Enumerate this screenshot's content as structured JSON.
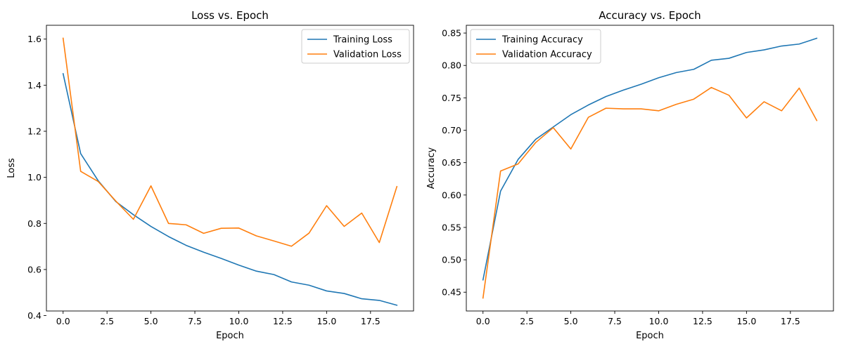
{
  "chart_data": [
    {
      "type": "line",
      "title": "Loss vs. Epoch",
      "xlabel": "Epoch",
      "ylabel": "Loss",
      "xlim": [
        -0.95,
        19.95
      ],
      "ylim": [
        0.42,
        1.66
      ],
      "xticks": [
        0.0,
        2.5,
        5.0,
        7.5,
        10.0,
        12.5,
        15.0,
        17.5
      ],
      "xtick_labels": [
        "0.0",
        "2.5",
        "5.0",
        "7.5",
        "10.0",
        "12.5",
        "15.0",
        "17.5"
      ],
      "yticks": [
        0.4,
        0.6,
        0.8,
        1.0,
        1.2,
        1.4,
        1.6
      ],
      "ytick_labels": [
        "0.4",
        "0.6",
        "0.8",
        "1.0",
        "1.2",
        "1.4",
        "1.6"
      ],
      "legend_position": "top-right",
      "grid": false,
      "x": [
        0,
        1,
        2,
        3,
        4,
        5,
        6,
        7,
        8,
        9,
        10,
        11,
        12,
        13,
        14,
        15,
        16,
        17,
        18,
        19
      ],
      "series": [
        {
          "name": "Training Loss",
          "color": "#1f77b4",
          "values": [
            1.45,
            1.103,
            0.985,
            0.895,
            0.838,
            0.787,
            0.743,
            0.705,
            0.675,
            0.648,
            0.619,
            0.593,
            0.578,
            0.546,
            0.532,
            0.507,
            0.496,
            0.473,
            0.466,
            0.445
          ]
        },
        {
          "name": "Validation Loss",
          "color": "#ff7f0e",
          "values": [
            1.604,
            1.026,
            0.982,
            0.897,
            0.818,
            0.963,
            0.8,
            0.794,
            0.757,
            0.779,
            0.78,
            0.746,
            0.724,
            0.701,
            0.758,
            0.877,
            0.787,
            0.845,
            0.717,
            0.96
          ]
        }
      ]
    },
    {
      "type": "line",
      "title": "Accuracy vs. Epoch",
      "xlabel": "Epoch",
      "ylabel": "Accuracy",
      "xlim": [
        -0.95,
        19.95
      ],
      "ylim": [
        0.421,
        0.862
      ],
      "xticks": [
        0.0,
        2.5,
        5.0,
        7.5,
        10.0,
        12.5,
        15.0,
        17.5
      ],
      "xtick_labels": [
        "0.0",
        "2.5",
        "5.0",
        "7.5",
        "10.0",
        "12.5",
        "15.0",
        "17.5"
      ],
      "yticks": [
        0.45,
        0.5,
        0.55,
        0.6,
        0.65,
        0.7,
        0.75,
        0.8,
        0.85
      ],
      "ytick_labels": [
        "0.45",
        "0.50",
        "0.55",
        "0.60",
        "0.65",
        "0.70",
        "0.75",
        "0.80",
        "0.85"
      ],
      "legend_position": "top-left",
      "grid": false,
      "x": [
        0,
        1,
        2,
        3,
        4,
        5,
        6,
        7,
        8,
        9,
        10,
        11,
        12,
        13,
        14,
        15,
        16,
        17,
        18,
        19
      ],
      "series": [
        {
          "name": "Training Accuracy",
          "color": "#1f77b4",
          "values": [
            0.469,
            0.606,
            0.655,
            0.686,
            0.705,
            0.724,
            0.739,
            0.752,
            0.762,
            0.771,
            0.781,
            0.789,
            0.794,
            0.808,
            0.811,
            0.82,
            0.824,
            0.83,
            0.833,
            0.842
          ]
        },
        {
          "name": "Validation Accuracy",
          "color": "#ff7f0e",
          "values": [
            0.441,
            0.637,
            0.648,
            0.681,
            0.704,
            0.671,
            0.72,
            0.734,
            0.733,
            0.733,
            0.73,
            0.74,
            0.748,
            0.766,
            0.754,
            0.719,
            0.744,
            0.73,
            0.765,
            0.715
          ]
        }
      ]
    }
  ]
}
